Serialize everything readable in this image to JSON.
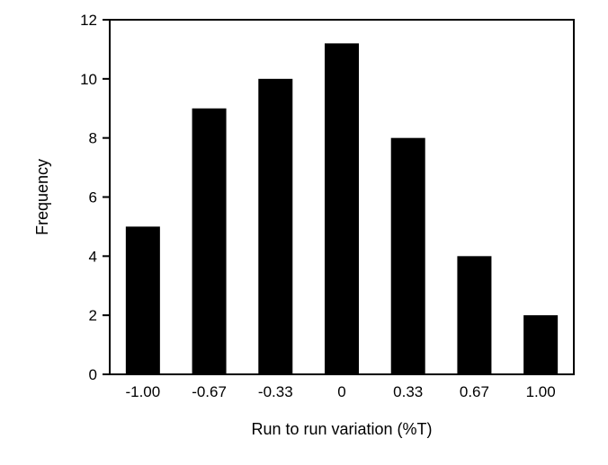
{
  "chart_data": {
    "type": "bar",
    "categories": [
      "-1.00",
      "-0.67",
      "-0.33",
      "0",
      "0.33",
      "0.67",
      "1.00"
    ],
    "values": [
      5,
      9,
      10,
      11.2,
      8,
      4,
      2
    ],
    "xlabel": "Run to run variation (%T)",
    "ylabel": "Frequency",
    "ylim": [
      0,
      12
    ],
    "yticks": [
      "0",
      "2",
      "4",
      "6",
      "8",
      "10",
      "12"
    ],
    "grid": false,
    "legend": "none",
    "bar_color": "#000000",
    "axis_color": "#000000"
  }
}
